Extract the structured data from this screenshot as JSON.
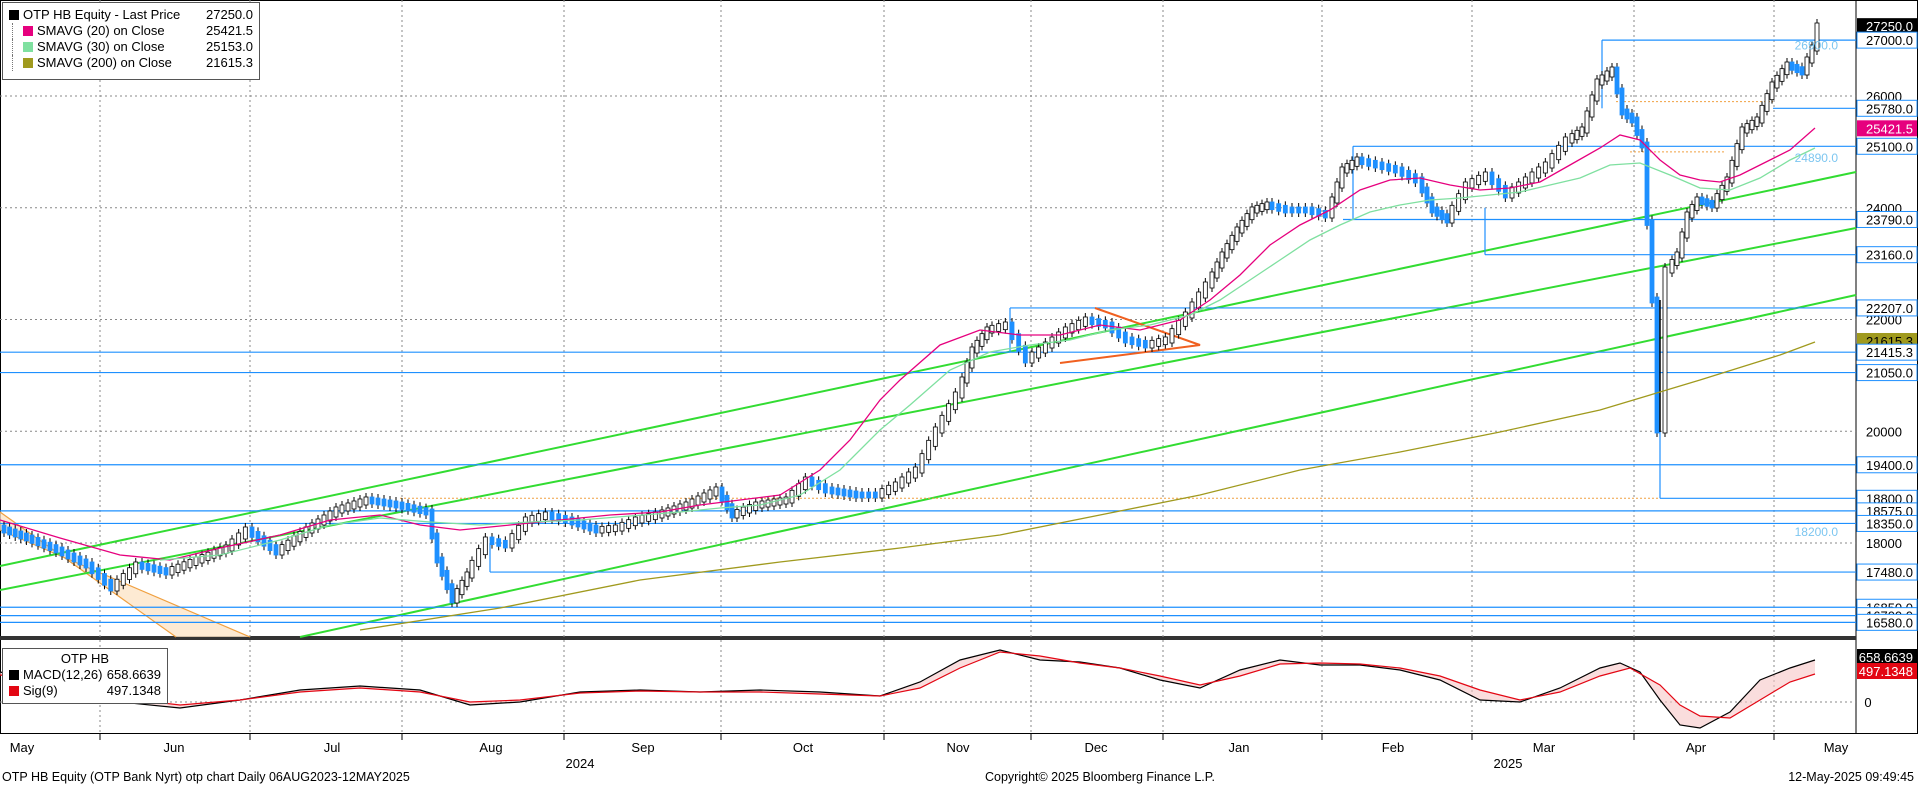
{
  "legend": {
    "items": [
      {
        "label": "OTP HB Equity - Last Price",
        "value": "27250.0",
        "color": "#000000"
      },
      {
        "label": "SMAVG (20)  on Close",
        "value": "25421.5",
        "color": "#e6007e"
      },
      {
        "label": "SMAVG (30)  on Close",
        "value": "25153.0",
        "color": "#7fe0a0"
      },
      {
        "label": "SMAVG (200)  on Close",
        "value": "21615.3",
        "color": "#a09a1e"
      }
    ]
  },
  "macd_legend": {
    "title": "OTP HB",
    "items": [
      {
        "label": "MACD(12,26)",
        "value": "658.6639",
        "color": "#000000"
      },
      {
        "label": "Sig(9)",
        "value": "497.1348",
        "color": "#e30613"
      }
    ]
  },
  "footer": {
    "left": "OTP HB Equity (OTP Bank Nyrt)  otp chart  Daily 06AUG2023-12MAY2025",
    "center": "Copyright© 2025 Bloomberg Finance L.P.",
    "right": "12-May-2025 09:49:45"
  },
  "colors": {
    "candle": "#1e90ff",
    "sma20": "#e6007e",
    "sma30": "#7fe0a0",
    "sma200": "#a09a1e",
    "trend": "#32dc32",
    "level": "#1e90ff",
    "macd": "#000000",
    "signal": "#e30613"
  },
  "chart_data": {
    "type": "line",
    "title": "",
    "ylim": [
      16200,
      27600
    ],
    "y_ticks": [
      18000,
      20000,
      22000,
      24000,
      26000
    ],
    "x_month_labels": [
      "May",
      "Jun",
      "Jul",
      "Aug",
      "Sep",
      "Oct",
      "Nov",
      "Dec",
      "Jan",
      "Feb",
      "Mar",
      "Apr",
      "May"
    ],
    "x_year_labels": [
      "2024",
      "2025"
    ],
    "series": [
      {
        "name": "OTP HB Equity - Last Price",
        "last": 27250.0,
        "monthly_closes": [
          18300,
          17900,
          18100,
          18900,
          18500,
          18700,
          18800,
          21200,
          21600,
          23800,
          24900,
          25600,
          23200,
          27250
        ]
      },
      {
        "name": "SMAVG (20)  on Close",
        "last": 25421.5
      },
      {
        "name": "SMAVG (30)  on Close",
        "last": 25153.0
      },
      {
        "name": "SMAVG (200)  on Close",
        "last": 21615.3
      }
    ],
    "price_level_labels": [
      {
        "value": 27250.0,
        "text": "27250.0",
        "style": "last"
      },
      {
        "value": 27000.0,
        "text": "27000.0",
        "style": "level"
      },
      {
        "value": 26900.0,
        "text": "26900.0",
        "style": "faint"
      },
      {
        "value": 25780.0,
        "text": "25780.0",
        "style": "level"
      },
      {
        "value": 25421.5,
        "text": "25421.5",
        "style": "sma20"
      },
      {
        "value": 25100.0,
        "text": "25100.0",
        "style": "level"
      },
      {
        "value": 24890.0,
        "text": "24890.0",
        "style": "faint"
      },
      {
        "value": 23790.0,
        "text": "23790.0",
        "style": "level"
      },
      {
        "value": 23160.0,
        "text": "23160.0",
        "style": "level"
      },
      {
        "value": 22207.0,
        "text": "22207.0",
        "style": "level"
      },
      {
        "value": 21615.3,
        "text": "21615.3",
        "style": "sma200"
      },
      {
        "value": 21415.3,
        "text": "21415.3",
        "style": "level"
      },
      {
        "value": 21050.0,
        "text": "21050.0",
        "style": "level"
      },
      {
        "value": 19400.0,
        "text": "19400.0",
        "style": "level"
      },
      {
        "value": 18800.0,
        "text": "18800.0",
        "style": "level"
      },
      {
        "value": 18575.0,
        "text": "18575.0",
        "style": "level"
      },
      {
        "value": 18350.0,
        "text": "18350.0",
        "style": "level"
      },
      {
        "value": 18200.0,
        "text": "18200.0",
        "style": "faint"
      },
      {
        "value": 17480.0,
        "text": "17480.0",
        "style": "level"
      },
      {
        "value": 16850.0,
        "text": "16850.0",
        "style": "level"
      },
      {
        "value": 16700.0,
        "text": "16700.0",
        "style": "level"
      },
      {
        "value": 16580.0,
        "text": "16580.0",
        "style": "level"
      }
    ],
    "macd": {
      "ylabel_ticks": [
        "0"
      ],
      "macd_last": 658.6639,
      "signal_last": 497.1348
    }
  }
}
